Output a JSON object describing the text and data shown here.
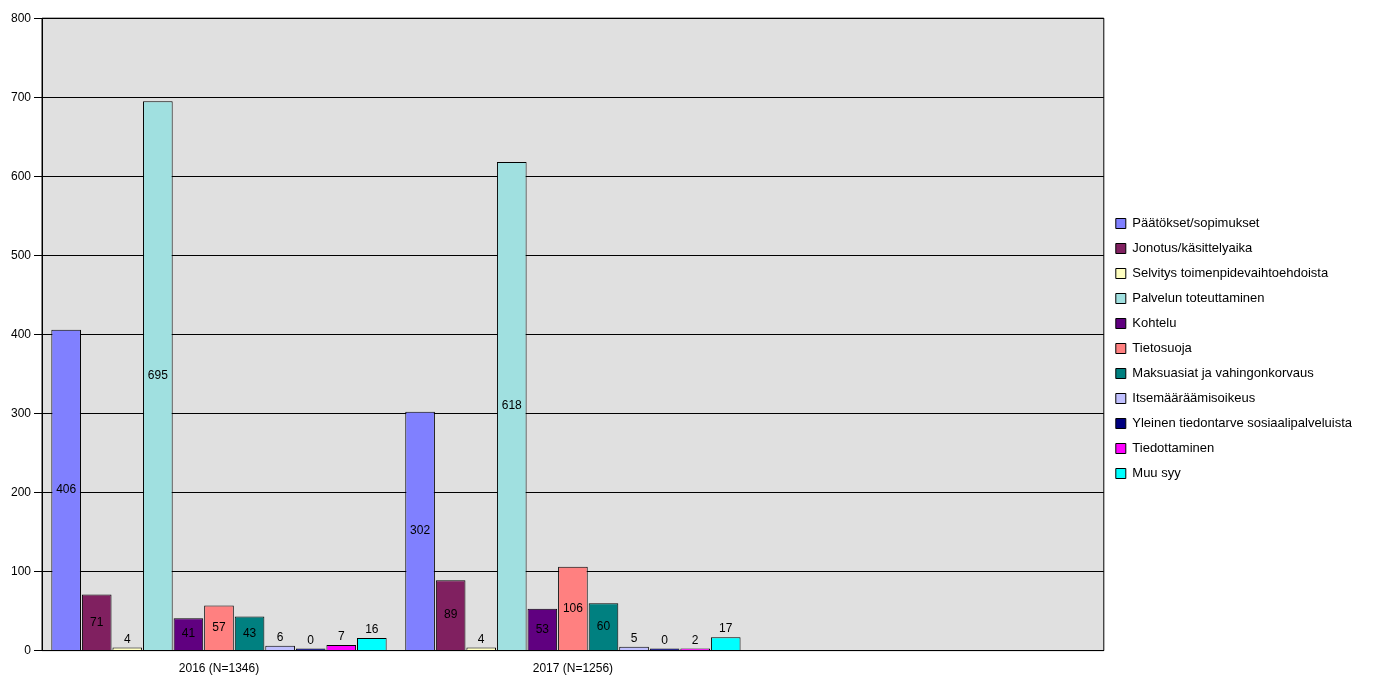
{
  "chart_data": {
    "type": "bar",
    "categories": [
      "2016 (N=1346)",
      "2017 (N=1256)",
      null
    ],
    "ylim": [
      0,
      800
    ],
    "yticks": [
      0,
      100,
      200,
      300,
      400,
      500,
      600,
      700,
      800
    ],
    "grid": "y",
    "legend": "right",
    "data_labels": true,
    "series": [
      {
        "name": "Päätökset/sopimukset",
        "color": "#8080ff",
        "values": [
          406,
          302,
          null
        ]
      },
      {
        "name": "Jonotus/käsittelyaika",
        "color": "#802060",
        "values": [
          71,
          89,
          null
        ]
      },
      {
        "name": "Selvitys toimenpidevaihtoehdoista",
        "color": "#ffffc0",
        "values": [
          4,
          4,
          null
        ]
      },
      {
        "name": "Palvelun toteuttaminen",
        "color": "#a0e0e0",
        "values": [
          695,
          618,
          null
        ]
      },
      {
        "name": "Kohtelu",
        "color": "#600080",
        "values": [
          41,
          53,
          null
        ]
      },
      {
        "name": "Tietosuoja",
        "color": "#ff8080",
        "values": [
          57,
          106,
          null
        ]
      },
      {
        "name": "Maksuasiat ja vahingonkorvaus",
        "color": "#008080",
        "values": [
          43,
          60,
          null
        ]
      },
      {
        "name": "Itsemääräämisoikeus",
        "color": "#c0c0ff",
        "values": [
          6,
          5,
          null
        ]
      },
      {
        "name": "Yleinen tiedontarve sosiaalipalveluista",
        "color": "#000080",
        "values": [
          0,
          0,
          null
        ]
      },
      {
        "name": "Tiedottaminen",
        "color": "#ff00ff",
        "values": [
          7,
          2,
          null
        ]
      },
      {
        "name": "Muu syy",
        "color": "#00ffff",
        "values": [
          16,
          17,
          null
        ]
      }
    ]
  }
}
